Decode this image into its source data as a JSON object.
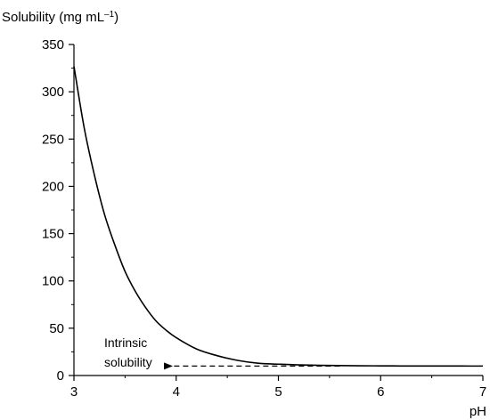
{
  "chart_data": {
    "type": "line",
    "title": "",
    "xlabel": "pH",
    "ylabel_prefix": "Solubility (mg mL",
    "ylabel_sup": "–1",
    "ylabel_suffix": ")",
    "xlim": [
      3,
      7
    ],
    "ylim": [
      0,
      350
    ],
    "x_ticks": [
      3,
      4,
      5,
      6,
      7
    ],
    "y_ticks": [
      0,
      50,
      100,
      150,
      200,
      250,
      300,
      350
    ],
    "grid": false,
    "legend": "none",
    "line_color": "#000000",
    "series": [
      {
        "x": [
          3.0,
          3.1,
          3.2,
          3.3,
          3.4,
          3.5,
          3.6,
          3.7,
          3.8,
          3.9,
          4.0,
          4.2,
          4.4,
          4.6,
          4.8,
          5.0,
          5.2,
          5.4,
          5.6,
          5.8,
          6.0,
          6.2,
          6.4,
          6.6,
          6.8,
          7.0
        ],
        "y": [
          327,
          262,
          212,
          170,
          138,
          110,
          89,
          72,
          58,
          48,
          40,
          28,
          21,
          16,
          13,
          12,
          11.2,
          10.8,
          10.5,
          10.3,
          10.2,
          10.1,
          10.05,
          10.02,
          10.01,
          10.0
        ]
      }
    ],
    "annotation": {
      "lines": [
        "Intrinsic",
        "solubility"
      ],
      "arrow_from_x": 5.6,
      "arrow_to_x": 3.95,
      "arrow_y": 10
    }
  }
}
